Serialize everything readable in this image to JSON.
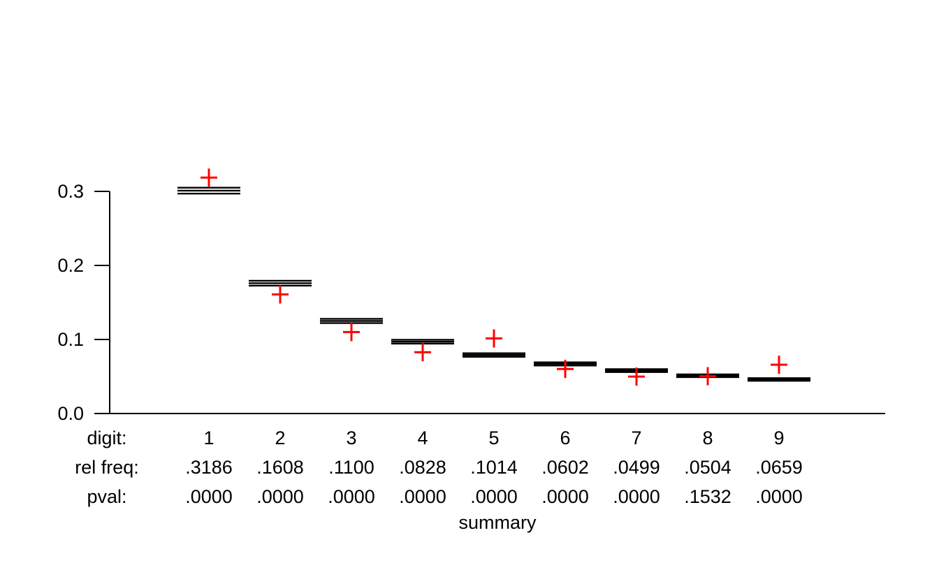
{
  "chart_data": {
    "type": "scatter",
    "title": "",
    "xlabel": "summary",
    "ylabel": "",
    "ylim": [
      0,
      0.32
    ],
    "grid": false,
    "legend": "none",
    "yticks": [
      {
        "value": 0.0,
        "label": "0.0"
      },
      {
        "value": 0.1,
        "label": "0.1"
      },
      {
        "value": 0.2,
        "label": "0.2"
      },
      {
        "value": 0.3,
        "label": "0.3"
      }
    ],
    "categories": [
      "1",
      "2",
      "3",
      "4",
      "5",
      "6",
      "7",
      "8",
      "9"
    ],
    "series": [
      {
        "name": "expected-benford-band",
        "marker": "triple-line-bar",
        "color": "#000000",
        "values": [
          0.301,
          0.176,
          0.125,
          0.097,
          0.079,
          0.067,
          0.058,
          0.051,
          0.046
        ],
        "band_halfwidth": [
          0.004,
          0.0033,
          0.0029,
          0.0026,
          0.0024,
          0.0022,
          0.002,
          0.0019,
          0.0018
        ]
      },
      {
        "name": "observed-rel-freq",
        "marker": "plus",
        "color": "#ff0000",
        "values": [
          0.3186,
          0.1608,
          0.11,
          0.0828,
          0.1014,
          0.0602,
          0.0499,
          0.0504,
          0.0659
        ]
      }
    ],
    "table": {
      "rows": [
        {
          "label": "digit:",
          "values": [
            "1",
            "2",
            "3",
            "4",
            "5",
            "6",
            "7",
            "8",
            "9"
          ]
        },
        {
          "label": "rel freq:",
          "values": [
            ".3186",
            ".1608",
            ".1100",
            ".0828",
            ".1014",
            ".0602",
            ".0499",
            ".0504",
            ".0659"
          ]
        },
        {
          "label": "pval:",
          "values": [
            ".0000",
            ".0000",
            ".0000",
            ".0000",
            ".0000",
            ".0000",
            ".0000",
            ".1532",
            ".0000"
          ]
        }
      ]
    }
  },
  "colors": {
    "axis": "#000000",
    "expected_bar": "#000000",
    "observed_plus": "#ff0000",
    "background": "#ffffff"
  }
}
